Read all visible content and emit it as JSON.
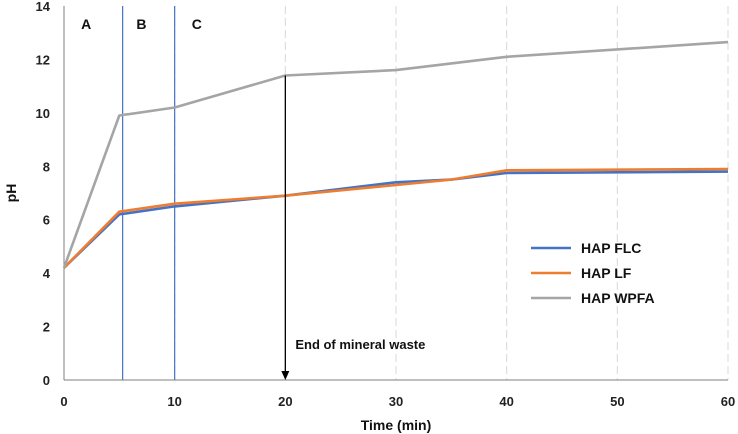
{
  "chart_data": {
    "type": "line",
    "title": "",
    "xlabel": "Time (min)",
    "ylabel": "pH",
    "xlim": [
      0,
      60
    ],
    "ylim": [
      0,
      14
    ],
    "xticks": [
      0,
      10,
      20,
      30,
      40,
      50,
      60
    ],
    "yticks": [
      0,
      2,
      4,
      6,
      8,
      10,
      12,
      14
    ],
    "grid": "vertical",
    "legend_position": "right",
    "series": [
      {
        "name": "HAP FLC",
        "color": "#4472C4",
        "x": [
          0,
          5,
          10,
          20,
          30,
          35,
          40,
          60
        ],
        "y": [
          4.2,
          6.2,
          6.5,
          6.9,
          7.4,
          7.5,
          7.75,
          7.8
        ]
      },
      {
        "name": "HAP LF",
        "color": "#ED7D31",
        "x": [
          0,
          5,
          10,
          20,
          30,
          35,
          40,
          60
        ],
        "y": [
          4.2,
          6.3,
          6.6,
          6.9,
          7.3,
          7.5,
          7.85,
          7.9
        ]
      },
      {
        "name": "HAP WPFA",
        "color": "#A5A5A5",
        "x": [
          0,
          5,
          10,
          20,
          30,
          40,
          60
        ],
        "y": [
          4.2,
          9.9,
          10.2,
          11.4,
          11.6,
          12.1,
          12.65
        ]
      }
    ],
    "regions": [
      {
        "label": "A",
        "x": 2
      },
      {
        "label": "B",
        "x": 7
      },
      {
        "label": "C",
        "x": 12
      }
    ],
    "region_boundaries": [
      5.3,
      10
    ],
    "annotation": {
      "text": "End of mineral waste",
      "x": 20,
      "y_top": 11.4,
      "y_bottom": 0
    }
  }
}
